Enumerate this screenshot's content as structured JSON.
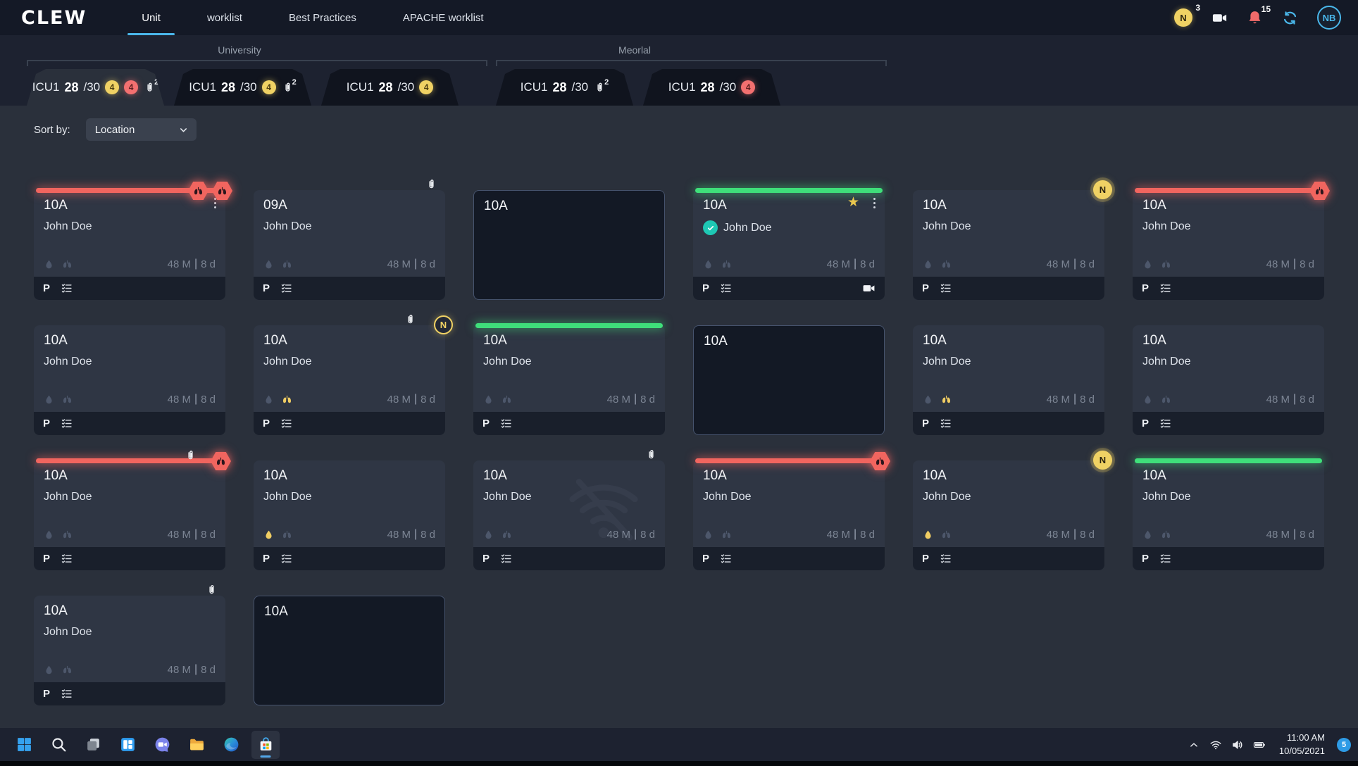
{
  "navbar": {
    "logo": "CLEW",
    "items": [
      {
        "label": "Unit",
        "active": true
      },
      {
        "label": "worklist",
        "active": false
      },
      {
        "label": "Best Practices",
        "active": false
      },
      {
        "label": "APACHE worklist",
        "active": false
      }
    ],
    "n_badge": {
      "label": "N",
      "count": "3"
    },
    "bell_count": "15",
    "avatar": "NB"
  },
  "groups": [
    {
      "name": "University"
    },
    {
      "name": "Meorlal"
    }
  ],
  "tabs": [
    {
      "group": 0,
      "unit": "ICU1",
      "count": "28",
      "capacity": "/30",
      "yellow": "4",
      "red": "4",
      "clip": "2",
      "active": true
    },
    {
      "group": 0,
      "unit": "ICU1",
      "count": "28",
      "capacity": "/30",
      "yellow": "4",
      "clip": "2",
      "active": false
    },
    {
      "group": 0,
      "unit": "ICU1",
      "count": "28",
      "capacity": "/30",
      "yellow": "4",
      "active": false
    },
    {
      "group": 1,
      "unit": "ICU1",
      "count": "28",
      "capacity": "/30",
      "clip": "2",
      "active": false
    },
    {
      "group": 1,
      "unit": "ICU1",
      "count": "28",
      "capacity": "/30",
      "red": "4",
      "active": false
    }
  ],
  "sort": {
    "label": "Sort by:",
    "value": "Location"
  },
  "card_defaults": {
    "name": "John Doe",
    "age": "48 M",
    "separator": "|",
    "los": "8 d",
    "footer_label": "P",
    "n_badge_label": "N"
  },
  "cards": [
    {
      "room": "10A",
      "bar": "red",
      "hexagons": 2,
      "kebab": true
    },
    {
      "room": "09A",
      "clip": true
    },
    {
      "room": "10A",
      "empty": true
    },
    {
      "room": "10A",
      "bar": "green",
      "star": true,
      "kebab": true,
      "verified": true,
      "camera": true
    },
    {
      "room": "10A",
      "n_badge": "filled"
    },
    {
      "room": "10A",
      "bar": "red",
      "hexagons": 1
    },
    {
      "room": "10A"
    },
    {
      "room": "10A",
      "clip": true,
      "n_badge": "outline",
      "lungs_active": true
    },
    {
      "room": "10A",
      "bar": "green"
    },
    {
      "room": "10A",
      "empty": true
    },
    {
      "room": "10A",
      "lungs_active": true
    },
    {
      "room": "10A"
    },
    {
      "room": "10A",
      "bar": "red",
      "bar_clip": true,
      "hexagons": 1
    },
    {
      "room": "10A",
      "droplet_active": true
    },
    {
      "room": "10A",
      "clip": true,
      "offline": true
    },
    {
      "room": "10A",
      "bar": "red",
      "hexagons": 1
    },
    {
      "room": "10A",
      "n_badge": "filled",
      "droplet_active": true
    },
    {
      "room": "10A",
      "bar": "green"
    },
    {
      "room": "10A",
      "clip": true
    },
    {
      "room": "10A",
      "empty": true
    }
  ],
  "taskbar": {
    "apps": [
      "start",
      "search",
      "task-view",
      "widgets",
      "chat",
      "file-explorer",
      "edge",
      "store"
    ],
    "active_app": "store",
    "tray_icons": [
      "chevron-up",
      "wifi",
      "volume",
      "battery"
    ],
    "time": "11:00 AM",
    "date": "10/05/2021",
    "badge": "5"
  },
  "colors": {
    "accent": "#4ab7ea",
    "red": "#f1655f",
    "green": "#3fdf7a",
    "yellow": "#f0d264",
    "teal": "#1ec8b4"
  }
}
